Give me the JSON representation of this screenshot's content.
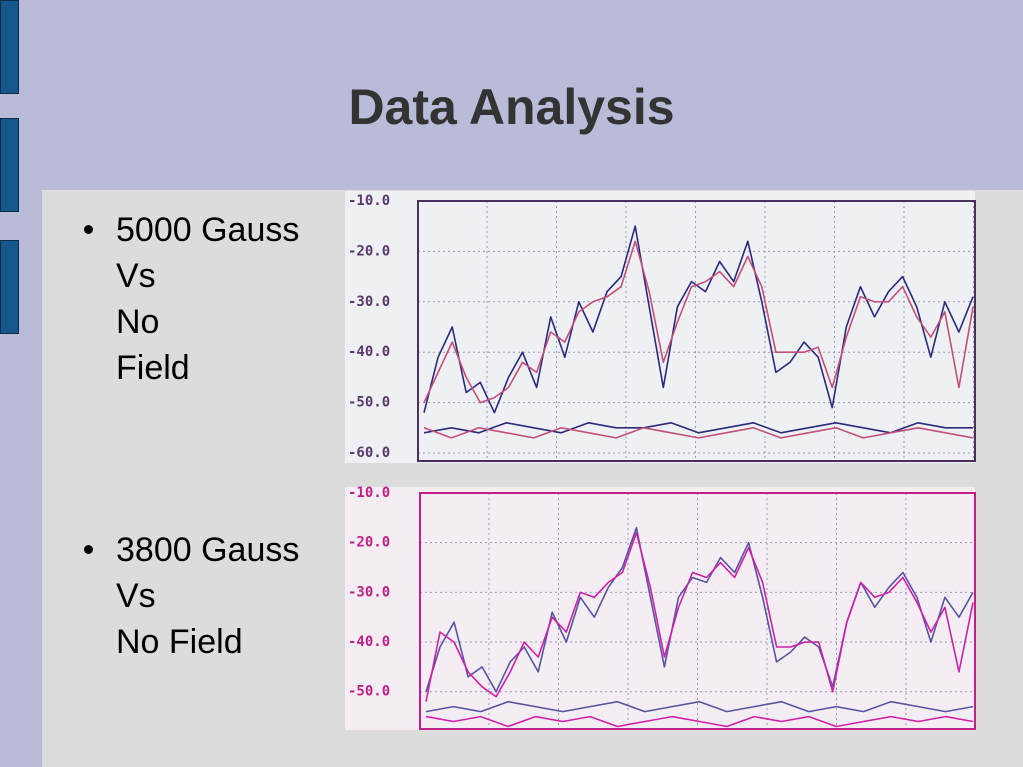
{
  "slide": {
    "title": "Data Analysis",
    "bullets": [
      [
        "5000 Gauss",
        "Vs",
        "No",
        "Field"
      ],
      [
        "3800 Gauss",
        "Vs",
        "No Field"
      ]
    ]
  },
  "chart_data": [
    {
      "type": "line",
      "ylim": [
        -60,
        -10
      ],
      "grid": true,
      "yticks": [
        {
          "value": -10,
          "label": "-10.0"
        },
        {
          "value": -20,
          "label": "-20.0"
        },
        {
          "value": -30,
          "label": "-30.0"
        },
        {
          "value": -40,
          "label": "-40.0"
        },
        {
          "value": -50,
          "label": "-50.0"
        },
        {
          "value": -60,
          "label": "-60.0"
        }
      ],
      "series": [
        {
          "color": "#2b2a7c",
          "values": [
            -52,
            -41,
            -35,
            -48,
            -46,
            -52,
            -45,
            -40,
            -47,
            -33,
            -41,
            -30,
            -36,
            -28,
            -25,
            -15,
            -31,
            -47,
            -31,
            -26,
            -28,
            -22,
            -26,
            -18,
            -30,
            -44,
            -42,
            -38,
            -41,
            -51,
            -35,
            -27,
            -33,
            -28,
            -25,
            -31,
            -41,
            -30,
            -36,
            -29
          ]
        },
        {
          "color": "#c4507a",
          "values": [
            -50,
            -44,
            -38,
            -45,
            -50,
            -49,
            -47,
            -42,
            -44,
            -36,
            -38,
            -32,
            -30,
            -29,
            -27,
            -18,
            -28,
            -42,
            -34,
            -27,
            -26,
            -24,
            -27,
            -21,
            -27,
            -40,
            -40,
            -40,
            -39,
            -47,
            -37,
            -29,
            -30,
            -30,
            -27,
            -33,
            -37,
            -32,
            -47,
            -31
          ]
        },
        {
          "color": "#2b2a7c",
          "values": [
            -56,
            -55,
            -56,
            -54,
            -55,
            -56,
            -54,
            -55,
            -55,
            -54,
            -56,
            -55,
            -54,
            -56,
            -55,
            -54,
            -55,
            -56,
            -54,
            -55,
            -55
          ]
        },
        {
          "color": "#c4507a",
          "values": [
            -55,
            -57,
            -55,
            -56,
            -57,
            -55,
            -56,
            -57,
            -55,
            -56,
            -57,
            -56,
            -55,
            -57,
            -56,
            -55,
            -57,
            -56,
            -55,
            -56,
            -57
          ]
        }
      ]
    },
    {
      "type": "line",
      "ylim": [
        -57.5,
        -10
      ],
      "grid": true,
      "yticks": [
        {
          "value": -10,
          "label": "-10.0"
        },
        {
          "value": -20,
          "label": "-20.0"
        },
        {
          "value": -30,
          "label": "-30.0"
        },
        {
          "value": -40,
          "label": "-40.0"
        },
        {
          "value": -50,
          "label": "-50.0"
        }
      ],
      "series": [
        {
          "color": "#5555a0",
          "values": [
            -50,
            -41,
            -36,
            -47,
            -45,
            -50,
            -44,
            -41,
            -46,
            -34,
            -40,
            -31,
            -35,
            -29,
            -25,
            -17,
            -31,
            -45,
            -31,
            -27,
            -28,
            -23,
            -26,
            -20,
            -31,
            -44,
            -42,
            -39,
            -41,
            -49,
            -36,
            -28,
            -33,
            -29,
            -26,
            -31,
            -40,
            -31,
            -35,
            -30
          ]
        },
        {
          "color": "#d020a8",
          "values": [
            -52,
            -38,
            -40,
            -46,
            -49,
            -51,
            -46,
            -40,
            -43,
            -35,
            -38,
            -30,
            -31,
            -28,
            -26,
            -18,
            -29,
            -43,
            -33,
            -26,
            -27,
            -24,
            -27,
            -21,
            -28,
            -41,
            -41,
            -40,
            -40,
            -50,
            -36,
            -28,
            -31,
            -30,
            -27,
            -32,
            -38,
            -33,
            -46,
            -32
          ]
        },
        {
          "color": "#5555a0",
          "values": [
            -54,
            -53,
            -54,
            -52,
            -53,
            -54,
            -53,
            -52,
            -54,
            -53,
            -52,
            -54,
            -53,
            -52,
            -54,
            -53,
            -54,
            -52,
            -53,
            -54,
            -53
          ]
        },
        {
          "color": "#d020a8",
          "values": [
            -55,
            -56,
            -55,
            -57,
            -55,
            -56,
            -55,
            -57,
            -56,
            -55,
            -56,
            -57,
            -55,
            -56,
            -55,
            -57,
            -56,
            -55,
            -56,
            -55,
            -56
          ]
        }
      ]
    }
  ]
}
